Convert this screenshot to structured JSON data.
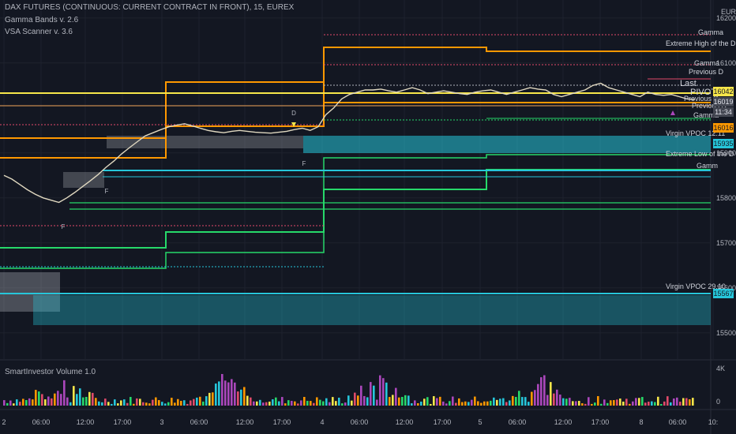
{
  "header": {
    "title": "DAX FUTURES (CONTINUOUS: CURRENT CONTRACT IN FRONT), 15, EUREX",
    "indicator1": "Gamma Bands v. 2.6",
    "indicator2": "VSA Scanner v. 3.6",
    "currency": "EUR"
  },
  "volume_pane": {
    "title": "SmartInvestor Volume 1.0",
    "ticks": [
      "4K",
      "0"
    ]
  },
  "chart_data": {
    "type": "line",
    "symbol": "DAX FUTURES",
    "interval": "15",
    "y_axis": {
      "ticks": [
        16200,
        16100,
        15900,
        15800,
        15700,
        15600,
        15500
      ],
      "ylim": [
        15440,
        16240
      ]
    },
    "x_axis": {
      "ticks": [
        "2",
        "06:00",
        "12:00",
        "17:00",
        "3",
        "06:00",
        "12:00",
        "17:00",
        "4",
        "06:00",
        "12:00",
        "17:00",
        "5",
        "06:00",
        "12:00",
        "17:00",
        "8",
        "06:00",
        "10:"
      ]
    },
    "price_labels": [
      {
        "value": "16042",
        "color": "#f7e64a",
        "text_color": "#131722"
      },
      {
        "value": "16019",
        "color": "#434651",
        "text_color": "#e0e3eb"
      },
      {
        "value": "11:34",
        "color": "#434651",
        "text_color": "#e0e3eb"
      },
      {
        "value": "16016",
        "color": "#ff9800",
        "text_color": "#131722"
      },
      {
        "value": "15935",
        "color": "#26c6da",
        "text_color": "#131722"
      },
      {
        "value": "15567",
        "color": "#26c6da",
        "text_color": "#131722"
      }
    ],
    "annotations": [
      "Gamma",
      "Extreme High of the D",
      "Gamma",
      "Previous D",
      "Last",
      "PIVOT",
      "Previous Day",
      "Previous D",
      "Gamma",
      "Virgin VPOC 12.11",
      "Extreme Low of the D",
      "Gamm",
      "Virgin VPOC 29.10"
    ],
    "vsa_markers": [
      "D",
      "F",
      "F",
      "F"
    ],
    "close_series": [
      15850,
      15842,
      15830,
      15818,
      15808,
      15800,
      15795,
      15790,
      15800,
      15812,
      15825,
      15838,
      15852,
      15868,
      15882,
      15898,
      15912,
      15925,
      15938,
      15945,
      15952,
      15958,
      15962,
      15965,
      15960,
      15955,
      15950,
      15947,
      15945,
      15948,
      15950,
      15948,
      15946,
      15945,
      15944,
      15946,
      15948,
      15952,
      15955,
      15950,
      15958,
      15985,
      16000,
      16020,
      16030,
      16035,
      16040,
      16040,
      16042,
      16038,
      16035,
      16040,
      16045,
      16040,
      16032,
      16035,
      16038,
      16035,
      16032,
      16030,
      16035,
      16038,
      16040,
      16035,
      16030,
      16035,
      16040,
      16045,
      16042,
      16040,
      16030,
      16025,
      16030,
      16035,
      16040,
      16050,
      16055,
      16045,
      16040,
      16035,
      16030,
      16025,
      16035,
      16030,
      16028,
      16030,
      16025,
      16020,
      16019
    ],
    "key_levels": [
      {
        "name": "Last",
        "value": 16042
      },
      {
        "name": "PIVOT",
        "value": 16025
      },
      {
        "name": "Virgin VPOC 12.11",
        "value": 15935
      },
      {
        "name": "Virgin VPOC 29.10",
        "value": 15567
      }
    ]
  }
}
